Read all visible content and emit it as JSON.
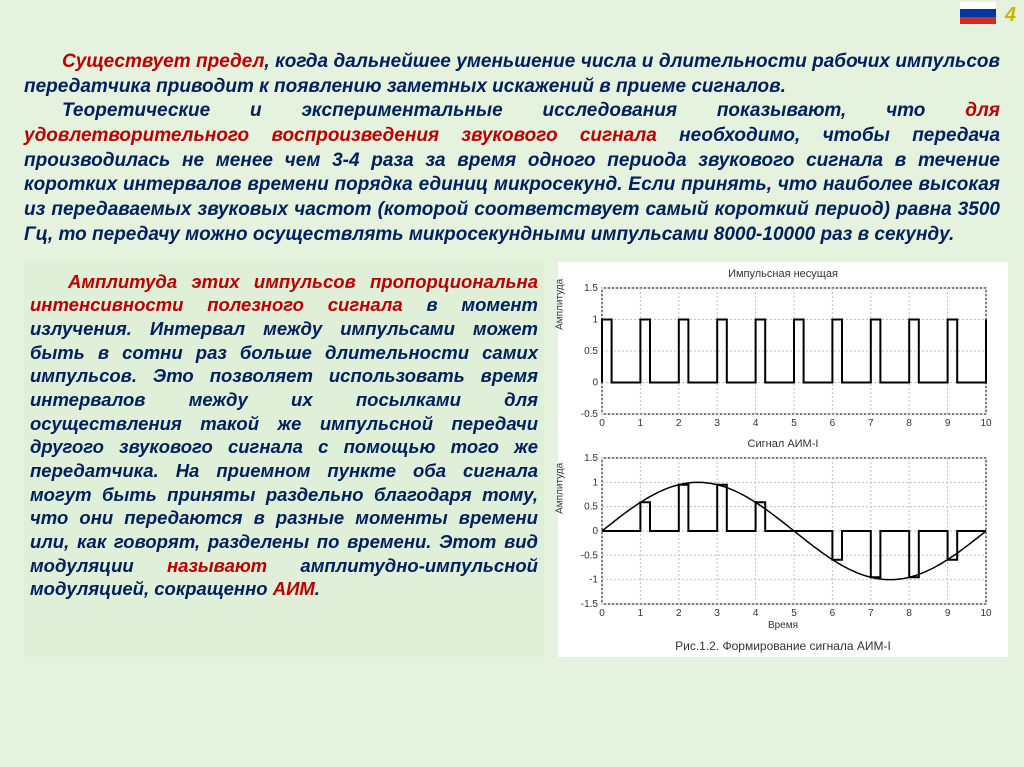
{
  "page_number": "4",
  "top_paragraph_1a": "Существует предел",
  "top_paragraph_1b": ", когда дальнейшее уменьшение числа и длительности рабочих импульсов передатчика приводит к появлению заметных искажений в приеме сигналов.",
  "top_paragraph_2a": "Теоретические и экспериментальные исследования показывают, что ",
  "top_paragraph_2b": "для удовлетворительного воспроизведения звукового сигнала",
  "top_paragraph_2c": " необходимо, чтобы передача производилась не менее чем 3-4 раза за время одного периода звукового сигнала в течение коротких интервалов времени порядка единиц микросекунд. Если принять, что наиболее высокая из передаваемых звуковых частот (которой соответствует самый короткий период) равна 3500 Гц, то передачу можно осуществлять микросекундными импульсами 8000-10000 раз в секунду.",
  "left_1a": "Амплитуда этих импульсов пропорциональна интенсивности полезного сигнала",
  "left_1b": " в момент излучения. Интервал между импульсами может быть в сотни раз больше длительности самих импульсов. Это позволяет использовать время интервалов между их посылками для осуществления такой же импульсной передачи другого звукового сигнала с помощью того же передатчика. На приемном пункте оба сигнала могут быть приняты раздельно благодаря тому, что они передаются в разные моменты времени или, как говорят, разделены по времени. Этот вид модуляции ",
  "left_1c": "называют",
  "left_1d": " амплитудно-импульсной модуляцией, сокращенно ",
  "left_1e": "АИМ",
  "left_1f": ".",
  "chart1": {
    "title": "Импульсная несущая",
    "ylabel": "Амплитуда",
    "xticks": [
      0,
      1,
      2,
      3,
      4,
      5,
      6,
      7,
      8,
      9,
      10
    ],
    "yticks": [
      -0.5,
      0,
      0.5,
      1,
      1.5
    ],
    "pulse_width": 0.25,
    "pulse_height": 1,
    "line_color": "#000000",
    "grid_color": "#c0c0c0",
    "bg_color": "#ffffff",
    "line_width": 2
  },
  "chart2": {
    "title": "Сигнал АИМ-I",
    "ylabel": "Амплитуда",
    "xlabel": "Время",
    "xticks": [
      0,
      1,
      2,
      3,
      4,
      5,
      6,
      7,
      8,
      9,
      10
    ],
    "yticks": [
      -1.5,
      -1,
      -0.5,
      0,
      0.5,
      1,
      1.5
    ],
    "line_color": "#000000",
    "grid_color": "#c0c0c0",
    "bg_color": "#ffffff",
    "line_width": 2,
    "pulse_width": 0.25,
    "sine_freq": 0.6283,
    "pulse_heights": [
      0,
      0.59,
      0.95,
      0.95,
      0.59,
      0,
      -0.59,
      -0.95,
      -0.95,
      -0.59,
      0
    ]
  },
  "caption": "Рис.1.2. Формирование сигнала АИМ-I"
}
